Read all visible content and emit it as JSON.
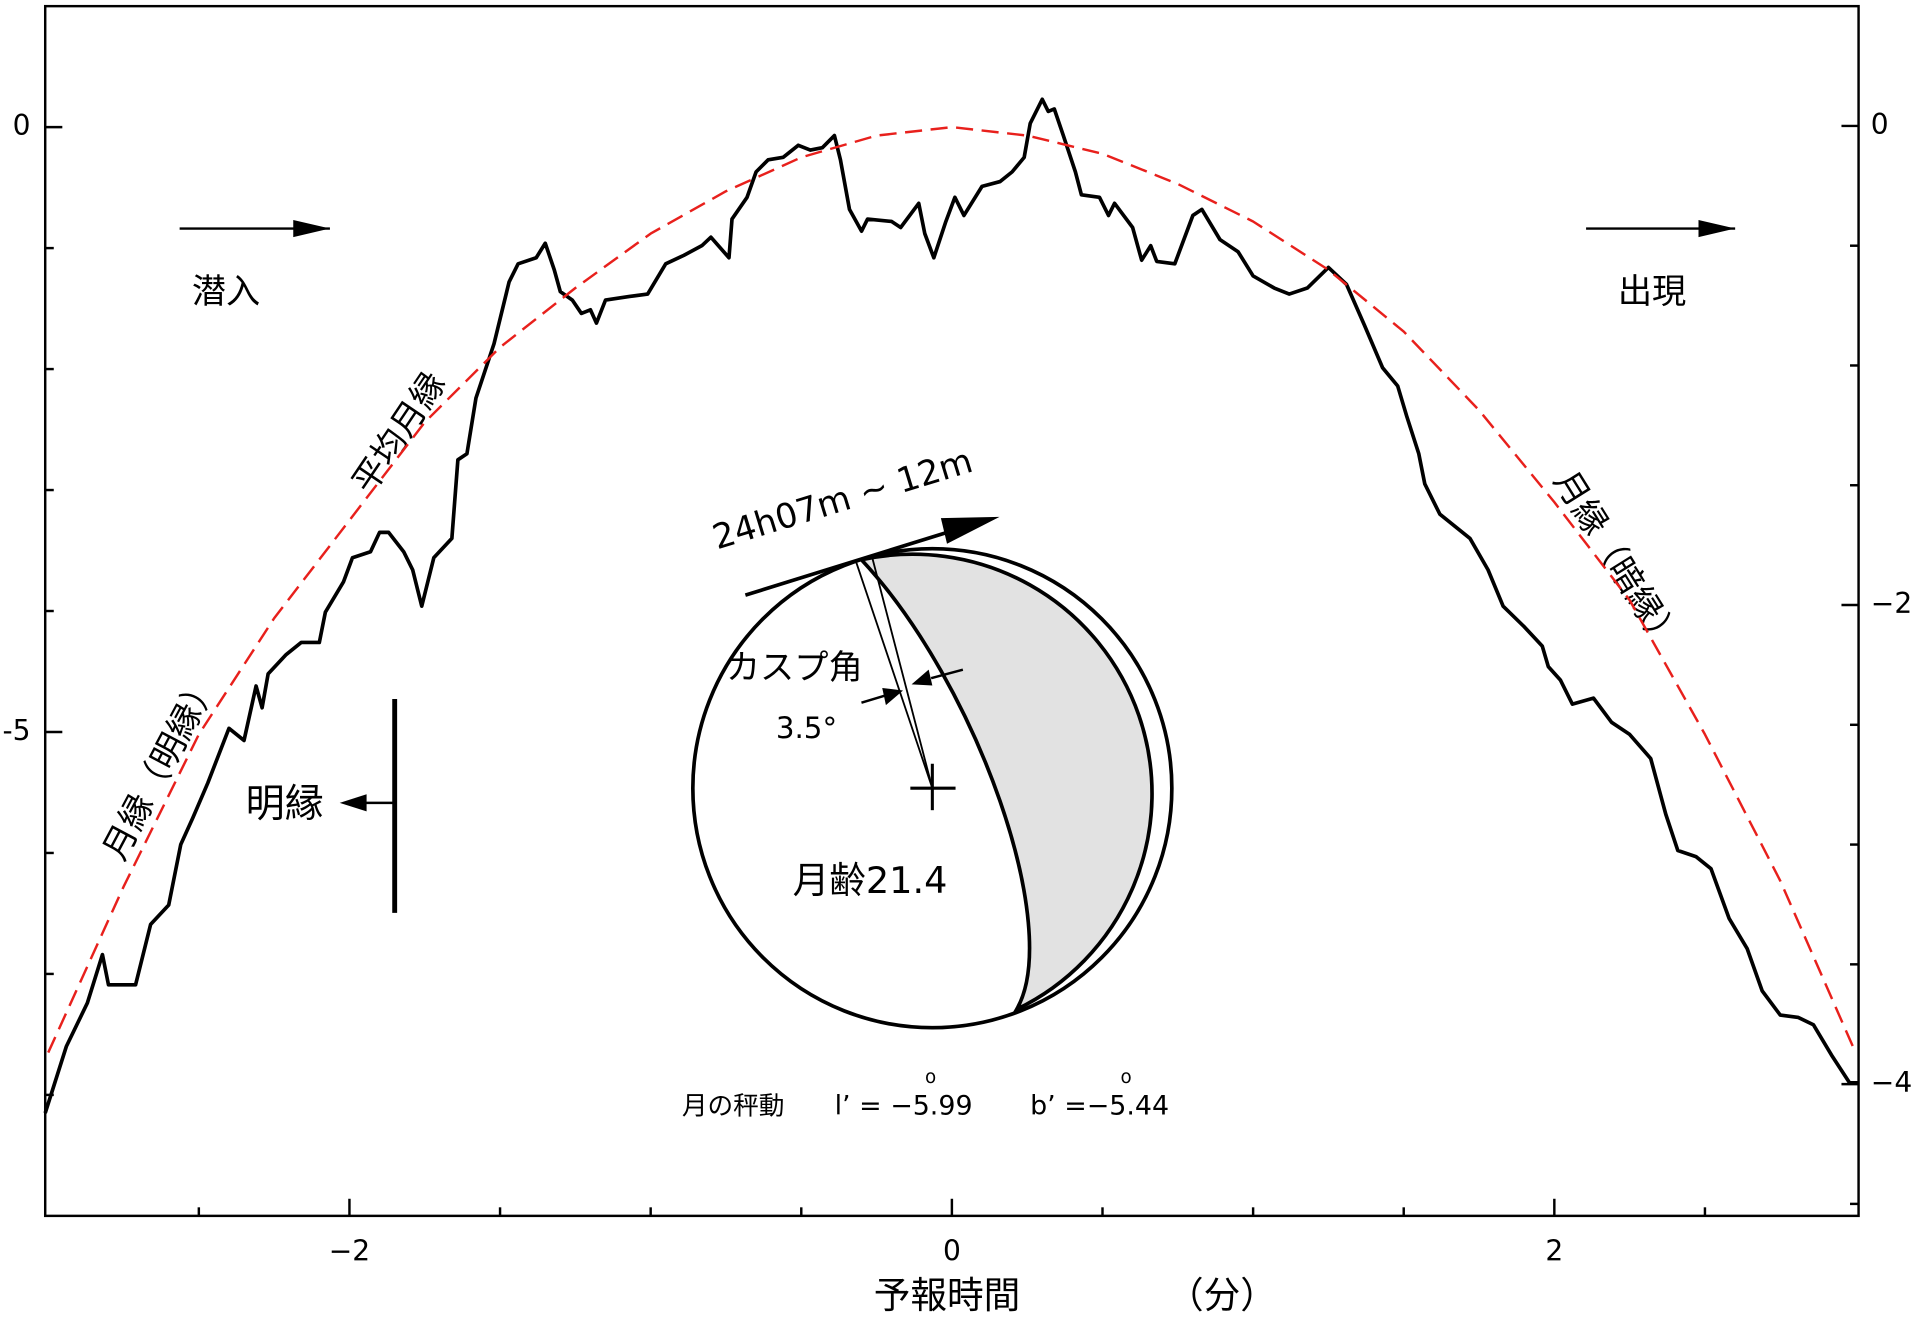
{
  "chart_data": {
    "type": "line",
    "xlabel": "予報時間",
    "xlabel_unit": "（分）",
    "xlim": [
      -3.01,
      3.01
    ],
    "xticks": [
      {
        "value": -2,
        "label": "−2"
      },
      0,
      2
    ],
    "xminorticks": [
      -2.5,
      -1.5,
      -1,
      -0.5,
      0.5,
      1,
      1.5,
      2.5
    ],
    "ylim": [
      -9,
      1
    ],
    "yticks": [
      0,
      {
        "value": -5,
        "label": "-5"
      }
    ],
    "yminorticks": [
      -1,
      -2,
      -3,
      -4,
      -6,
      -7,
      -8
    ],
    "y2lim": [
      -4.55,
      0.5
    ],
    "y2ticks": [
      0,
      {
        "value": -2,
        "label": "−2"
      },
      {
        "value": -4,
        "label": "−4"
      }
    ],
    "y2minorticks": [
      -0.5,
      -1,
      -1.5,
      -2.5,
      -3,
      -3.5,
      -4.5
    ],
    "series": [
      {
        "color": "#000000",
        "dashed": false,
        "x": [
          -3.01,
          -2.94,
          -2.87,
          -2.82,
          -2.8,
          -2.71,
          -2.66,
          -2.6,
          -2.56,
          -2.52,
          -2.47,
          -2.4,
          -2.35,
          -2.31,
          -2.29,
          -2.27,
          -2.21,
          -2.16,
          -2.1,
          -2.08,
          -2.02,
          -1.99,
          -1.93,
          -1.9,
          -1.87,
          -1.82,
          -1.79,
          -1.76,
          -1.72,
          -1.66,
          -1.64,
          -1.61,
          -1.58,
          -1.52,
          -1.47,
          -1.44,
          -1.38,
          -1.35,
          -1.32,
          -1.3,
          -1.26,
          -1.23,
          -1.2,
          -1.18,
          -1.15,
          -1.07,
          -1.01,
          -0.95,
          -0.89,
          -0.83,
          -0.8,
          -0.74,
          -0.73,
          -0.68,
          -0.65,
          -0.61,
          -0.56,
          -0.51,
          -0.47,
          -0.43,
          -0.39,
          -0.37,
          -0.34,
          -0.3,
          -0.28,
          -0.2,
          -0.17,
          -0.11,
          -0.09,
          -0.06,
          -0.02,
          0.01,
          0.04,
          0.1,
          0.16,
          0.2,
          0.24,
          0.26,
          0.3,
          0.32,
          0.34,
          0.37,
          0.41,
          0.43,
          0.49,
          0.52,
          0.54,
          0.6,
          0.63,
          0.66,
          0.68,
          0.74,
          0.8,
          0.83,
          0.89,
          0.95,
          1.0,
          1.07,
          1.12,
          1.18,
          1.25,
          1.31,
          1.37,
          1.43,
          1.48,
          1.51,
          1.55,
          1.57,
          1.62,
          1.67,
          1.72,
          1.78,
          1.83,
          1.9,
          1.96,
          1.98,
          2.02,
          2.06,
          2.13,
          2.19,
          2.25,
          2.32,
          2.37,
          2.41,
          2.47,
          2.52,
          2.58,
          2.64,
          2.69,
          2.75,
          2.81,
          2.86,
          2.92,
          2.98,
          3.01
        ],
        "values": [
          -8.15,
          -7.6,
          -7.24,
          -6.84,
          -7.09,
          -7.09,
          -6.59,
          -6.43,
          -5.93,
          -5.71,
          -5.42,
          -4.97,
          -5.07,
          -4.62,
          -4.8,
          -4.52,
          -4.36,
          -4.26,
          -4.26,
          -4.01,
          -3.76,
          -3.56,
          -3.51,
          -3.35,
          -3.35,
          -3.51,
          -3.66,
          -3.96,
          -3.56,
          -3.4,
          -2.75,
          -2.7,
          -2.24,
          -1.79,
          -1.28,
          -1.13,
          -1.08,
          -0.96,
          -1.18,
          -1.36,
          -1.43,
          -1.54,
          -1.51,
          -1.62,
          -1.43,
          -1.4,
          -1.38,
          -1.13,
          -1.06,
          -0.98,
          -0.91,
          -1.08,
          -0.76,
          -0.58,
          -0.37,
          -0.27,
          -0.25,
          -0.15,
          -0.19,
          -0.17,
          -0.07,
          -0.27,
          -0.68,
          -0.86,
          -0.76,
          -0.78,
          -0.83,
          -0.63,
          -0.88,
          -1.08,
          -0.78,
          -0.58,
          -0.73,
          -0.49,
          -0.45,
          -0.37,
          -0.25,
          0.03,
          0.23,
          0.13,
          0.15,
          -0.07,
          -0.37,
          -0.56,
          -0.58,
          -0.73,
          -0.63,
          -0.83,
          -1.1,
          -0.98,
          -1.11,
          -1.13,
          -0.73,
          -0.68,
          -0.93,
          -1.03,
          -1.23,
          -1.33,
          -1.38,
          -1.33,
          -1.16,
          -1.3,
          -1.64,
          -1.99,
          -2.14,
          -2.39,
          -2.7,
          -2.95,
          -3.2,
          -3.3,
          -3.4,
          -3.66,
          -3.96,
          -4.13,
          -4.29,
          -4.46,
          -4.57,
          -4.77,
          -4.72,
          -4.92,
          -5.02,
          -5.22,
          -5.68,
          -5.98,
          -6.03,
          -6.13,
          -6.54,
          -6.79,
          -7.14,
          -7.34,
          -7.36,
          -7.42,
          -7.67,
          -7.9,
          -7.9
        ]
      },
      {
        "color": "#e8201c",
        "dashed": true,
        "x": [
          -3.0,
          -2.75,
          -2.5,
          -2.25,
          -2.0,
          -1.75,
          -1.5,
          -1.25,
          -1.0,
          -0.75,
          -0.5,
          -0.25,
          0,
          0.25,
          0.5,
          0.75,
          1.0,
          1.25,
          1.5,
          1.75,
          2.0,
          2.25,
          2.5,
          2.75,
          3.0
        ],
        "values": [
          -7.65,
          -6.28,
          -5.02,
          -4.06,
          -3.25,
          -2.44,
          -1.82,
          -1.33,
          -0.88,
          -0.53,
          -0.25,
          -0.07,
          0,
          -0.07,
          -0.22,
          -0.47,
          -0.78,
          -1.18,
          -1.69,
          -2.34,
          -3.1,
          -3.91,
          -5.02,
          -6.23,
          -7.65
        ]
      }
    ],
    "annotations": {
      "immersion": "潜入",
      "emersion": "出現",
      "mean_limb": "平均月縁",
      "bright_limb_curve": "月縁（明縁）",
      "dark_limb_curve": "月縁（暗縁）",
      "bright_limb": "明縁",
      "time_range": "24h07m ~ 12m",
      "cusp_angle": "カスプ角",
      "cusp_value": "3.5°",
      "moon_age": "月齢21.4",
      "libration": "月の秤動",
      "libration_l": "l’ = −5.99",
      "libration_b": "b’ =−5.44",
      "degree_mark": "o"
    }
  }
}
